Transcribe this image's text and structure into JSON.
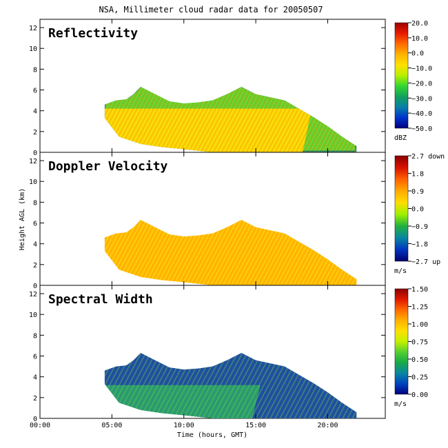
{
  "title": "NSA, Millimeter cloud radar data for 20050507",
  "xlabel": "Time (hours, GMT)",
  "ylabel": "Height AGL (km)",
  "x_ticks": [
    "00:00",
    "05:00",
    "10:00",
    "15:00",
    "20:00"
  ],
  "y_ticks": [
    "0",
    "2",
    "4",
    "6",
    "8",
    "10",
    "12"
  ],
  "colors": {
    "reflectivity_scale": [
      "#00007f",
      "#0033cc",
      "#0a7fa8",
      "#12a05a",
      "#33d633",
      "#b8f000",
      "#ffe000",
      "#ffb300",
      "#ff6a00",
      "#e81a00",
      "#9e0000"
    ],
    "velocity_scale": [
      "#00006e",
      "#0035c0",
      "#0a86a0",
      "#20b040",
      "#9ef000",
      "#ffdd00",
      "#ffaa00",
      "#ff6000",
      "#d81000",
      "#8a0000"
    ],
    "width_scale": [
      "#00007f",
      "#0045c0",
      "#0a86a0",
      "#18a848",
      "#52d030",
      "#c4f000",
      "#ffe000",
      "#ffb000",
      "#ff6800",
      "#e01800",
      "#8a0000"
    ]
  },
  "chart_data": [
    {
      "type": "heatmap",
      "title": "Reflectivity",
      "x_range_hours": [
        0,
        24
      ],
      "y_range_km": [
        0,
        12.8
      ],
      "colorbar": {
        "ticks": [
          "20.0",
          "10.0",
          "0.0",
          "−10.0",
          "−20.0",
          "−30.0",
          "−40.0",
          "−50.0"
        ],
        "unit": "dBZ",
        "range": [
          -50,
          20
        ]
      },
      "echo_top_km": [
        [
          4.5,
          4.6
        ],
        [
          5.3,
          5.0
        ],
        [
          6.0,
          5.1
        ],
        [
          6.5,
          5.6
        ],
        [
          7.0,
          6.3
        ],
        [
          8.0,
          5.6
        ],
        [
          9.0,
          4.9
        ],
        [
          10.0,
          4.7
        ],
        [
          11.0,
          4.8
        ],
        [
          12.0,
          5.0
        ],
        [
          13.0,
          5.6
        ],
        [
          14.0,
          6.3
        ],
        [
          15.0,
          5.6
        ],
        [
          16.0,
          5.3
        ],
        [
          17.0,
          5.0
        ],
        [
          18.0,
          4.2
        ],
        [
          19.0,
          3.4
        ],
        [
          20.0,
          2.5
        ],
        [
          21.0,
          1.5
        ],
        [
          22.0,
          0.6
        ]
      ],
      "echo_base_km": [
        [
          4.5,
          3.3
        ],
        [
          5.5,
          1.5
        ],
        [
          7.0,
          0.8
        ],
        [
          8.5,
          0.5
        ],
        [
          10.0,
          0.3
        ],
        [
          12.0,
          0.0
        ],
        [
          22.0,
          0.0
        ]
      ]
    },
    {
      "type": "heatmap",
      "title": "Doppler Velocity",
      "x_range_hours": [
        0,
        24
      ],
      "y_range_km": [
        0,
        12.8
      ],
      "colorbar": {
        "ticks": [
          "2.7 down",
          "1.8",
          "0.9",
          "0.0",
          "−0.9",
          "−1.8",
          "−2.7 up"
        ],
        "unit": "m/s",
        "range": [
          -2.7,
          2.7
        ]
      }
    },
    {
      "type": "heatmap",
      "title": "Spectral Width",
      "x_range_hours": [
        0,
        24
      ],
      "y_range_km": [
        0,
        12.8
      ],
      "colorbar": {
        "ticks": [
          "1.50",
          "1.25",
          "1.00",
          "0.75",
          "0.50",
          "0.25",
          "0.00"
        ],
        "unit": "m/s",
        "range": [
          0,
          1.5
        ]
      }
    }
  ]
}
